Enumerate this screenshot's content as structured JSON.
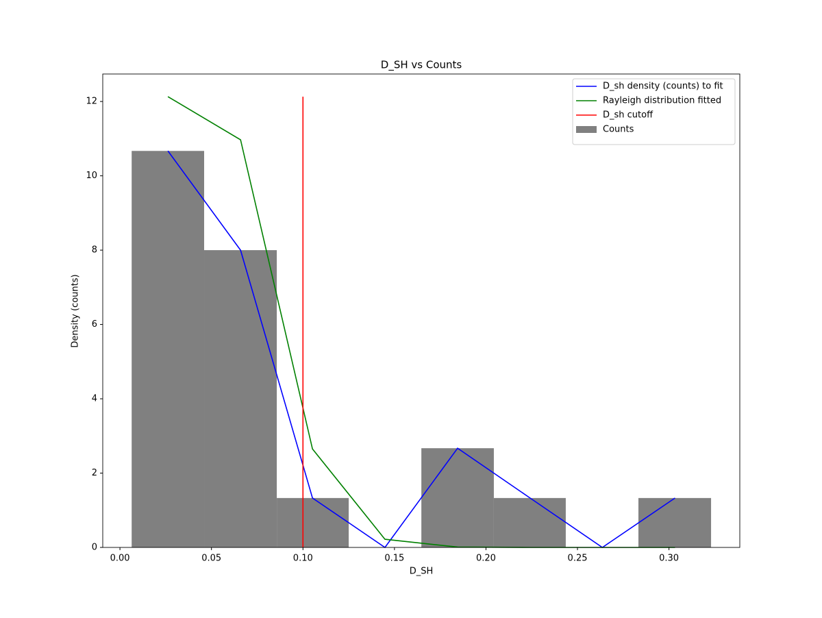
{
  "chart_data": {
    "type": "histogram",
    "title": "D_SH vs Counts",
    "xlabel": "D_SH",
    "ylabel": "Density (counts)",
    "bins": [
      0.0064,
      0.046,
      0.0857,
      0.125,
      0.1647,
      0.2043,
      0.2436,
      0.2833,
      0.323
    ],
    "series": [
      {
        "name": "Counts",
        "color": "#808080",
        "values": [
          10.67,
          8,
          1.33,
          0,
          2.67,
          1.33,
          0,
          1.33
        ]
      }
    ],
    "lines": [
      {
        "name": "D_sh density (counts) to fit",
        "color": "#0000ff",
        "x": [
          0.0262,
          0.0659,
          0.1052,
          0.1448,
          0.1845,
          0.2241,
          0.2636,
          0.3033
        ],
        "values": [
          10.67,
          8,
          1.33,
          0,
          2.67,
          1.33,
          0,
          1.33
        ]
      },
      {
        "name": "Rayleigh distribution fitted",
        "color": "#008000",
        "x": [
          0.0262,
          0.0659,
          0.1052,
          0.1448,
          0.1845,
          0.2241,
          0.2636,
          0.3033
        ],
        "values": [
          12.13,
          10.97,
          2.65,
          0.22,
          0.01,
          0,
          0,
          0
        ]
      },
      {
        "name": "D_sh cutoff",
        "color": "#ff0000",
        "x": [
          0.1,
          0.1
        ],
        "values": [
          0,
          12.13
        ]
      }
    ],
    "xlim": [
      -0.0094,
      0.3387
    ],
    "ylim": [
      0,
      12.74
    ],
    "xticks": [
      {
        "value": 0,
        "label": "0.00"
      },
      {
        "value": 0.05,
        "label": "0.05"
      },
      {
        "value": 0.1,
        "label": "0.10"
      },
      {
        "value": 0.15,
        "label": "0.15"
      },
      {
        "value": 0.2,
        "label": "0.20"
      },
      {
        "value": 0.25,
        "label": "0.25"
      },
      {
        "value": 0.3,
        "label": "0.30"
      }
    ],
    "yticks": [
      0,
      2,
      4,
      6,
      8,
      10,
      12
    ],
    "legend": "upper right"
  }
}
